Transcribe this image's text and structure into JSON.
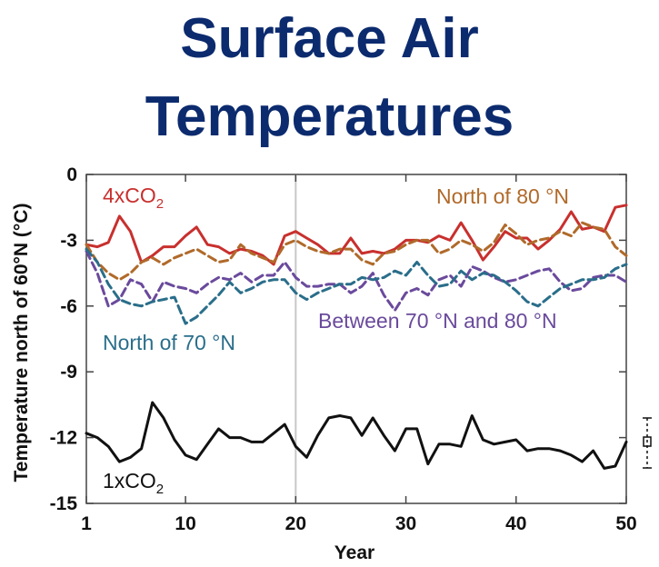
{
  "title_line1": "Surface Air",
  "title_line2": "Temperatures",
  "chart_data": {
    "type": "line",
    "xlabel": "Year",
    "ylabel": "Temperature north of 60°N (°C)",
    "xlim": [
      1,
      50
    ],
    "ylim": [
      -15,
      0
    ],
    "xticks": [
      1,
      10,
      20,
      30,
      40,
      50
    ],
    "yticks": [
      0,
      -3,
      -6,
      -9,
      -12,
      -15
    ],
    "grid": false,
    "vertical_marker_x": 20,
    "x": [
      1,
      2,
      3,
      4,
      5,
      6,
      7,
      8,
      9,
      10,
      11,
      12,
      13,
      14,
      15,
      16,
      17,
      18,
      19,
      20,
      21,
      22,
      23,
      24,
      25,
      26,
      27,
      28,
      29,
      30,
      31,
      32,
      33,
      34,
      35,
      36,
      37,
      38,
      39,
      40,
      41,
      42,
      43,
      44,
      45,
      46,
      47,
      48,
      49,
      50
    ],
    "series": [
      {
        "name": "4xCO2",
        "color": "#c8302e",
        "dashed": false,
        "values": [
          -3.2,
          -3.3,
          -3.1,
          -1.9,
          -2.6,
          -4.0,
          -3.7,
          -3.3,
          -3.3,
          -2.8,
          -2.4,
          -3.2,
          -3.3,
          -3.6,
          -3.4,
          -3.5,
          -3.7,
          -4.1,
          -2.8,
          -2.6,
          -2.9,
          -3.2,
          -3.6,
          -3.6,
          -2.9,
          -3.6,
          -3.5,
          -3.6,
          -3.4,
          -3.0,
          -3.0,
          -3.1,
          -2.8,
          -3.0,
          -2.2,
          -3.0,
          -3.9,
          -3.3,
          -2.6,
          -2.9,
          -2.9,
          -3.4,
          -3.0,
          -2.5,
          -1.7,
          -2.5,
          -2.4,
          -2.6,
          -1.5,
          -1.4
        ]
      },
      {
        "name": "North of 80 °N",
        "color": "#b06a2a",
        "dashed": true,
        "values": [
          -3.2,
          -4.0,
          -4.5,
          -4.8,
          -4.5,
          -4.0,
          -3.8,
          -4.1,
          -3.8,
          -3.6,
          -3.4,
          -3.7,
          -4.0,
          -3.9,
          -3.2,
          -3.6,
          -3.8,
          -4.0,
          -3.2,
          -3.0,
          -3.3,
          -3.5,
          -3.6,
          -3.4,
          -3.4,
          -3.9,
          -4.1,
          -3.6,
          -3.5,
          -3.2,
          -3.0,
          -3.0,
          -3.6,
          -3.4,
          -3.0,
          -3.2,
          -3.5,
          -3.1,
          -2.3,
          -2.7,
          -3.2,
          -3.0,
          -2.9,
          -2.6,
          -2.8,
          -2.2,
          -2.4,
          -2.5,
          -3.3,
          -3.7
        ]
      },
      {
        "name": "Between 70 °N and 80 °N",
        "color": "#6a4a9c",
        "dashed": true,
        "values": [
          -3.5,
          -4.5,
          -6.0,
          -5.7,
          -4.8,
          -5.0,
          -5.8,
          -4.9,
          -5.1,
          -5.2,
          -5.4,
          -5.0,
          -4.7,
          -4.8,
          -4.5,
          -4.9,
          -4.6,
          -4.6,
          -4.0,
          -4.7,
          -5.1,
          -5.1,
          -5.0,
          -5.0,
          -5.4,
          -5.1,
          -4.5,
          -5.5,
          -6.2,
          -5.4,
          -5.2,
          -5.5,
          -4.8,
          -4.6,
          -5.1,
          -4.2,
          -4.4,
          -4.7,
          -4.9,
          -4.8,
          -4.6,
          -4.4,
          -4.3,
          -4.9,
          -5.3,
          -5.2,
          -4.7,
          -4.6,
          -4.6,
          -4.9
        ]
      },
      {
        "name": "North of 70 °N",
        "color": "#2a6e8a",
        "dashed": true,
        "values": [
          -3.4,
          -4.0,
          -5.0,
          -5.7,
          -5.9,
          -6.0,
          -5.8,
          -5.7,
          -5.6,
          -6.8,
          -6.5,
          -6.0,
          -5.5,
          -4.9,
          -5.4,
          -5.2,
          -4.9,
          -4.8,
          -4.8,
          -5.4,
          -5.7,
          -5.4,
          -5.2,
          -5.0,
          -5.0,
          -4.7,
          -4.8,
          -4.7,
          -4.4,
          -4.6,
          -4.0,
          -4.6,
          -5.1,
          -5.0,
          -4.4,
          -4.8,
          -4.5,
          -4.6,
          -4.9,
          -5.3,
          -5.8,
          -6.0,
          -5.6,
          -5.2,
          -5.0,
          -4.8,
          -4.8,
          -4.7,
          -4.3,
          -4.1
        ]
      },
      {
        "name": "1xCO2",
        "color": "#111111",
        "dashed": false,
        "values": [
          -11.8,
          -12.0,
          -12.4,
          -13.1,
          -12.9,
          -12.5,
          -10.4,
          -11.1,
          -12.1,
          -12.8,
          -13.0,
          -12.3,
          -11.6,
          -12.0,
          -12.0,
          -12.2,
          -12.2,
          -11.8,
          -11.4,
          -12.4,
          -12.9,
          -11.9,
          -11.1,
          -11.0,
          -11.1,
          -11.9,
          -11.1,
          -11.9,
          -12.6,
          -11.6,
          -11.6,
          -13.2,
          -12.3,
          -12.3,
          -12.4,
          -11.0,
          -12.1,
          -12.3,
          -12.2,
          -12.1,
          -12.6,
          -12.5,
          -12.5,
          -12.6,
          -12.8,
          -13.1,
          -12.6,
          -13.4,
          -13.3,
          -12.2
        ]
      }
    ]
  },
  "series_labels": {
    "co2_4x_base": "4xCO",
    "co2_4x_sub": "2",
    "co2_1x_base": "1xCO",
    "co2_1x_sub": "2",
    "north80": "North of 80 °N",
    "between": "Between 70 °N and 80 °N",
    "north70": "North of 70 °N"
  },
  "colors": {
    "title": "#0c2b6e"
  }
}
